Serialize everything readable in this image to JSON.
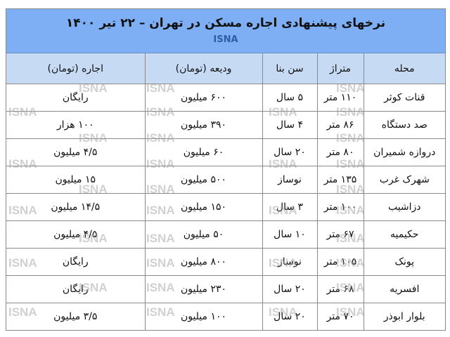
{
  "title": "نرخهای پیشنهادی اجاره مسکن در تهران –  ۲۲ تیر ۱۴۰۰",
  "brand": "ISNA",
  "watermark": "ISNA",
  "colors": {
    "title_band": "#7eaef4",
    "header_row": "#c6daf3",
    "brand_text": "#2f5ea6"
  },
  "headers": [
    "محله",
    "متراژ",
    "سن بنا",
    "ودیعه (تومان)",
    "اجاره (تومان)"
  ],
  "rows": [
    [
      "قنات کوثر",
      "۱۱۰ متر",
      "۵ سال",
      "۶۰۰ میلیون",
      "رایگان"
    ],
    [
      "صد دستگاه",
      "۸۶ متر",
      "۴ سال",
      "۳۹۰ میلیون",
      "۱۰۰ هزار"
    ],
    [
      "دروازه شمیران",
      "۸۰ متر",
      "۲۰ سال",
      "۶۰ میلیون",
      "۴/۵ میلیون"
    ],
    [
      "شهرک غرب",
      "۱۳۵ متر",
      "نوساز",
      "۵۰۰ میلیون",
      "۱۵ میلیون"
    ],
    [
      "دزاشیب",
      "۱۰۰ متر",
      "۳ سال",
      "۱۵۰ میلیون",
      "۱۴/۵ میلیون"
    ],
    [
      "حکیمیه",
      "۶۷ متر",
      "۱۰ سال",
      "۵۰ میلیون",
      "۴/۵ میلیون"
    ],
    [
      "پونک",
      "۱۰۵ متر",
      "نوساز",
      "۸۰۰ میلیون",
      "رایگان"
    ],
    [
      "افسریه",
      "۶۸ متر",
      "۲۰ سال",
      "۲۳۰ میلیون",
      "رایگان"
    ],
    [
      "بلوار ابوذر",
      "۷۰ متر",
      "۲۰ سال",
      "۱۰۰ میلیون",
      "۳/۵ میلیون"
    ]
  ]
}
